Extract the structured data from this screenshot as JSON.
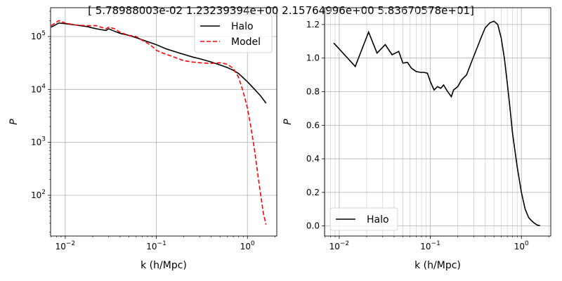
{
  "figure": {
    "title": "[ 5.78988003e-02  1.23239394e+00  2.15764996e+00  5.83670578e+01]"
  },
  "chart_data": [
    {
      "type": "line",
      "xscale": "log",
      "yscale": "log",
      "xlim": [
        0.0069,
        2.1
      ],
      "ylim": [
        17,
        350000
      ],
      "xlabel": "k (h/Mpc)",
      "ylabel": "P",
      "xtick_labels": [
        "10^-2",
        "10^-1",
        "10^0"
      ],
      "ytick_labels": [
        "10^2",
        "10^3",
        "10^4",
        "10^5"
      ],
      "grid": true,
      "legend_position": "top-right",
      "series": [
        {
          "name": "Halo",
          "color": "#000000",
          "style": "solid",
          "x": [
            0.007,
            0.0085,
            0.01,
            0.013,
            0.017,
            0.022,
            0.028,
            0.03,
            0.035,
            0.04,
            0.05,
            0.06,
            0.08,
            0.1,
            0.13,
            0.17,
            0.2,
            0.25,
            0.3,
            0.4,
            0.5,
            0.6,
            0.7,
            0.8,
            1.0,
            1.2,
            1.4,
            1.6
          ],
          "y": [
            150000,
            180000,
            175000,
            165000,
            155000,
            140000,
            130000,
            140000,
            125000,
            115000,
            105000,
            95000,
            80000,
            70000,
            58000,
            50000,
            46000,
            41000,
            38000,
            33000,
            29000,
            26000,
            23000,
            20000,
            14000,
            10000,
            7500,
            5500
          ]
        },
        {
          "name": "Model",
          "color": "#ff0000",
          "style": "dashed",
          "x": [
            0.007,
            0.0085,
            0.01,
            0.013,
            0.017,
            0.022,
            0.028,
            0.03,
            0.035,
            0.04,
            0.05,
            0.06,
            0.07,
            0.08,
            0.09,
            0.1,
            0.12,
            0.15,
            0.2,
            0.25,
            0.3,
            0.4,
            0.5,
            0.6,
            0.7,
            0.8,
            0.9,
            1.0,
            1.1,
            1.2,
            1.3,
            1.4,
            1.5,
            1.6
          ],
          "y": [
            160000,
            200000,
            180000,
            165000,
            160000,
            160000,
            140000,
            150000,
            140000,
            120000,
            105000,
            100000,
            85000,
            75000,
            65000,
            55000,
            48000,
            42000,
            35000,
            33000,
            32000,
            31000,
            32000,
            30000,
            25000,
            17000,
            9000,
            4500,
            1800,
            700,
            250,
            100,
            45,
            28
          ]
        }
      ]
    },
    {
      "type": "line",
      "xscale": "log",
      "yscale": "linear",
      "xlim": [
        0.0069,
        2.1
      ],
      "ylim": [
        -0.06,
        1.3
      ],
      "xlabel": "k (h/Mpc)",
      "ylabel": "P",
      "xtick_labels": [
        "10^-2",
        "10^-1",
        "10^0"
      ],
      "ytick_labels": [
        "0.0",
        "0.2",
        "0.4",
        "0.6",
        "0.8",
        "1.0",
        "1.2"
      ],
      "grid": true,
      "legend_position": "bottom-left",
      "series": [
        {
          "name": "Halo",
          "color": "#000000",
          "style": "solid",
          "x": [
            0.0087,
            0.015,
            0.021,
            0.026,
            0.032,
            0.038,
            0.045,
            0.05,
            0.056,
            0.062,
            0.07,
            0.078,
            0.085,
            0.093,
            0.1,
            0.11,
            0.12,
            0.13,
            0.14,
            0.155,
            0.17,
            0.18,
            0.2,
            0.22,
            0.25,
            0.28,
            0.32,
            0.36,
            0.4,
            0.45,
            0.5,
            0.55,
            0.6,
            0.65,
            0.7,
            0.75,
            0.8,
            0.9,
            1.0,
            1.1,
            1.2,
            1.3,
            1.4,
            1.5,
            1.6
          ],
          "y": [
            1.09,
            0.95,
            1.155,
            1.03,
            1.08,
            1.02,
            1.04,
            0.97,
            0.975,
            0.94,
            0.92,
            0.915,
            0.915,
            0.91,
            0.86,
            0.81,
            0.83,
            0.82,
            0.84,
            0.8,
            0.77,
            0.81,
            0.83,
            0.87,
            0.9,
            0.97,
            1.05,
            1.12,
            1.18,
            1.21,
            1.22,
            1.2,
            1.12,
            1.0,
            0.85,
            0.7,
            0.55,
            0.35,
            0.2,
            0.1,
            0.05,
            0.03,
            0.015,
            0.005,
            0.002
          ]
        }
      ]
    }
  ]
}
